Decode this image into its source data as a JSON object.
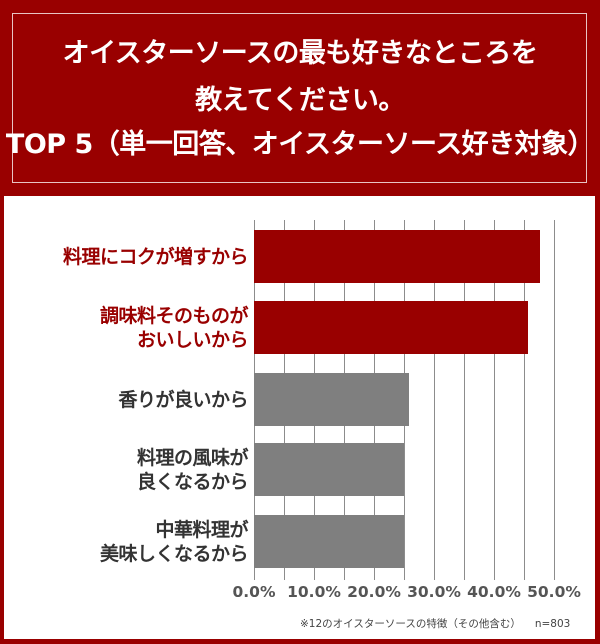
{
  "header": {
    "title_line1": "オイスターソースの最も好きなところを",
    "title_line2": "教えてください。",
    "title_line3": "TOP 5（単一回答、オイスターソース好き対象）"
  },
  "footnote": {
    "note": "※12のオイスターソースの特徴（その他含む）",
    "n": "n=803"
  },
  "colors": {
    "accent_red": "#990000",
    "bar_gray": "#7f7f7f",
    "background": "#ffffff"
  },
  "chart_data": {
    "type": "bar",
    "orientation": "horizontal",
    "title": "オイスターソースの最も好きなところを教えてください。TOP 5（単一回答、オイスターソース好き対象）",
    "categories": [
      "料理にコクが増すから",
      "調味料そのものが\nおいしいから",
      "香りが良いから",
      "料理の風味が\n良くなるから",
      "中華料理が\n美味しくなるから"
    ],
    "values": [
      47.7,
      45.6,
      25.9,
      25.0,
      25.0
    ],
    "bar_colors": [
      "#990000",
      "#990000",
      "#7f7f7f",
      "#7f7f7f",
      "#7f7f7f"
    ],
    "xlabel": "",
    "ylabel": "",
    "xlim": [
      0,
      50
    ],
    "x_ticks": [
      "0.0%",
      "10.0%",
      "20.0%",
      "30.0%",
      "40.0%",
      "50.0%"
    ],
    "grid": "vertical lines every 5%",
    "legend": "none",
    "annotation": "※12のオイスターソースの特徴（その他含む） n=803"
  }
}
